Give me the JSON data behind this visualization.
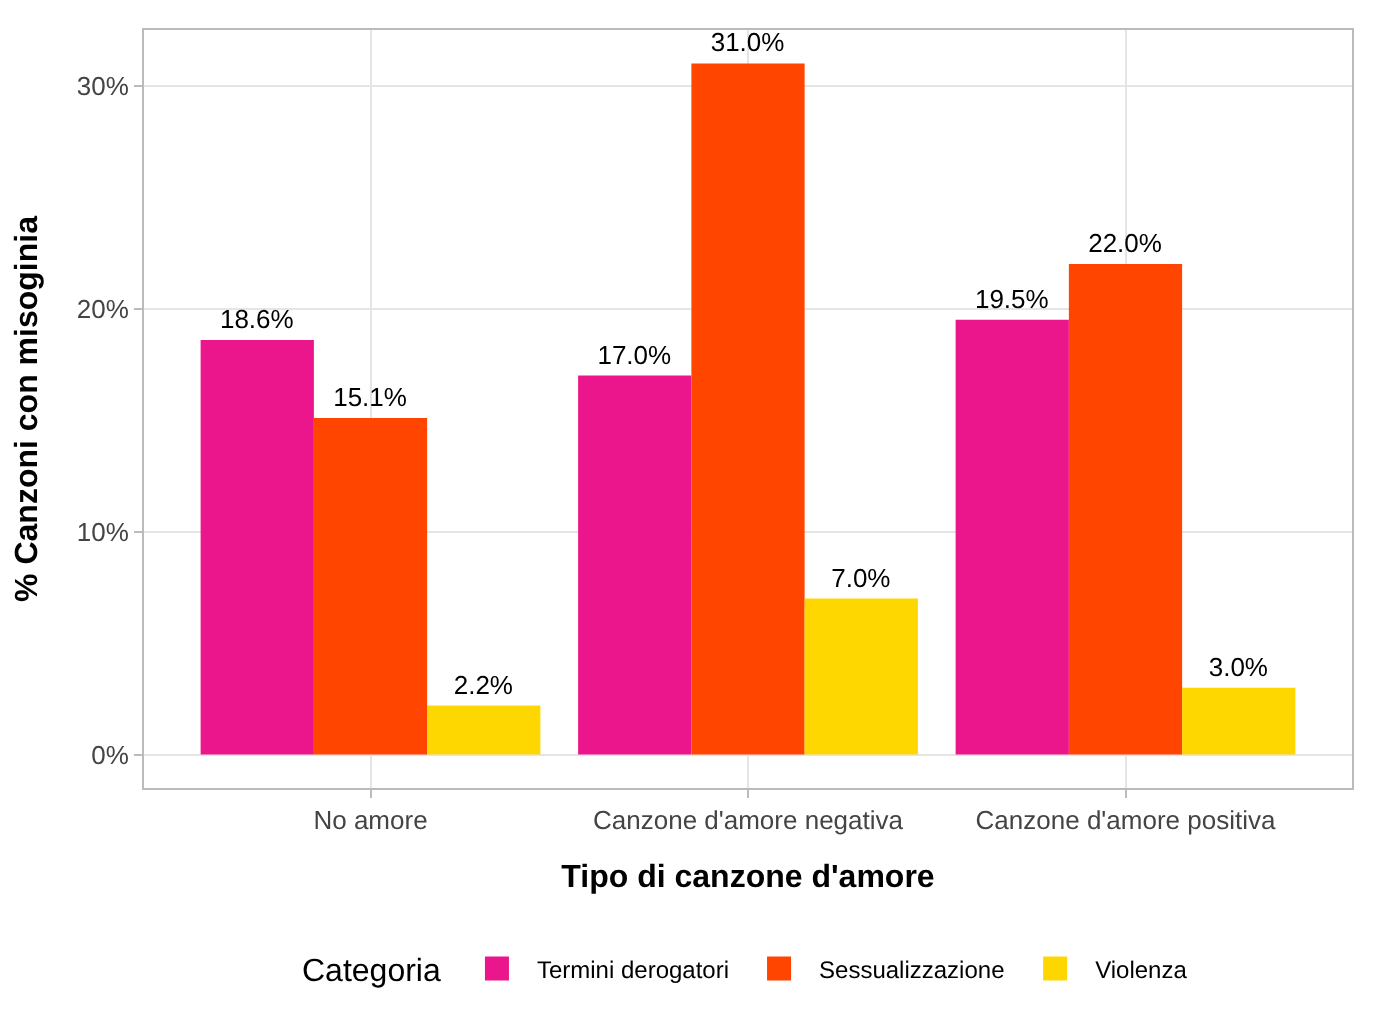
{
  "chart_data": {
    "type": "bar",
    "xlabel": "Tipo di canzone d'amore",
    "ylabel": "% Canzoni con misoginia",
    "legend_title": "Categoria",
    "categories": [
      "No amore",
      "Canzone d'amore negativa",
      "Canzone d'amore positiva"
    ],
    "series": [
      {
        "name": "Termini derogatori",
        "color": "#ec168c",
        "values": [
          18.6,
          17.0,
          19.5
        ],
        "value_labels": [
          "18.6%",
          "17.0%",
          "19.5%"
        ]
      },
      {
        "name": "Sessualizzazione",
        "color": "#ff4500",
        "values": [
          15.1,
          31.0,
          22.0
        ],
        "value_labels": [
          "15.1%",
          "31.0%",
          "22.0%"
        ]
      },
      {
        "name": "Violenza",
        "color": "#ffd700",
        "values": [
          2.2,
          7.0,
          3.0
        ],
        "value_labels": [
          "2.2%",
          "7.0%",
          "3.0%"
        ]
      }
    ],
    "ylim": [
      -1.5,
      32.5
    ],
    "yticks": [
      {
        "value": 0,
        "label": "0%"
      },
      {
        "value": 10,
        "label": "10%"
      },
      {
        "value": 20,
        "label": "20%"
      },
      {
        "value": 30,
        "label": "30%"
      }
    ],
    "grid": true,
    "legend": "bottom"
  }
}
